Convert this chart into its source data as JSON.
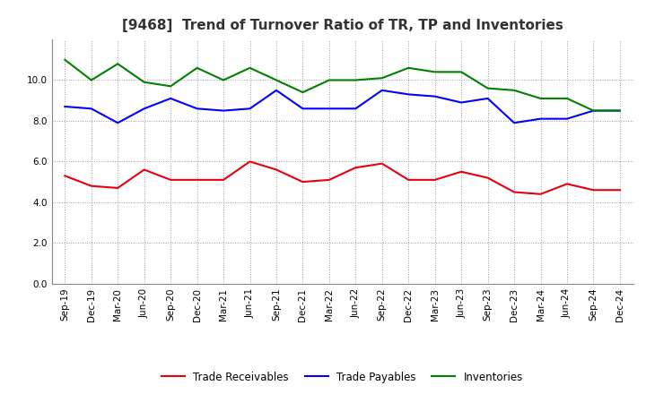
{
  "title": "[9468]  Trend of Turnover Ratio of TR, TP and Inventories",
  "x_labels": [
    "Sep-19",
    "Dec-19",
    "Mar-20",
    "Jun-20",
    "Sep-20",
    "Dec-20",
    "Mar-21",
    "Jun-21",
    "Sep-21",
    "Dec-21",
    "Mar-22",
    "Jun-22",
    "Sep-22",
    "Dec-22",
    "Mar-23",
    "Jun-23",
    "Sep-23",
    "Dec-23",
    "Mar-24",
    "Jun-24",
    "Sep-24",
    "Dec-24"
  ],
  "trade_receivables": [
    5.3,
    4.8,
    4.7,
    5.6,
    5.1,
    5.1,
    5.1,
    6.0,
    5.6,
    5.0,
    5.1,
    5.7,
    5.9,
    5.1,
    5.1,
    5.5,
    5.2,
    4.5,
    4.4,
    4.9,
    4.6,
    4.6
  ],
  "trade_payables": [
    8.7,
    8.6,
    7.9,
    8.6,
    9.1,
    8.6,
    8.5,
    8.6,
    9.5,
    8.6,
    8.6,
    8.6,
    9.5,
    9.3,
    9.2,
    8.9,
    9.1,
    7.9,
    8.1,
    8.1,
    8.5,
    8.5
  ],
  "inventories": [
    11.0,
    10.0,
    10.8,
    9.9,
    9.7,
    10.6,
    10.0,
    10.6,
    10.0,
    9.4,
    10.0,
    10.0,
    10.1,
    10.6,
    10.4,
    10.4,
    9.6,
    9.5,
    9.1,
    9.1,
    8.5,
    8.5
  ],
  "ylim": [
    0.0,
    12.0
  ],
  "yticks": [
    0.0,
    2.0,
    4.0,
    6.0,
    8.0,
    10.0
  ],
  "color_tr": "#e8000d",
  "color_tp": "#0000ff",
  "color_inv": "#008000",
  "legend_labels": [
    "Trade Receivables",
    "Trade Payables",
    "Inventories"
  ],
  "background_color": "#ffffff",
  "grid_color": "#999999",
  "title_fontsize": 11,
  "tick_fontsize": 7.5
}
